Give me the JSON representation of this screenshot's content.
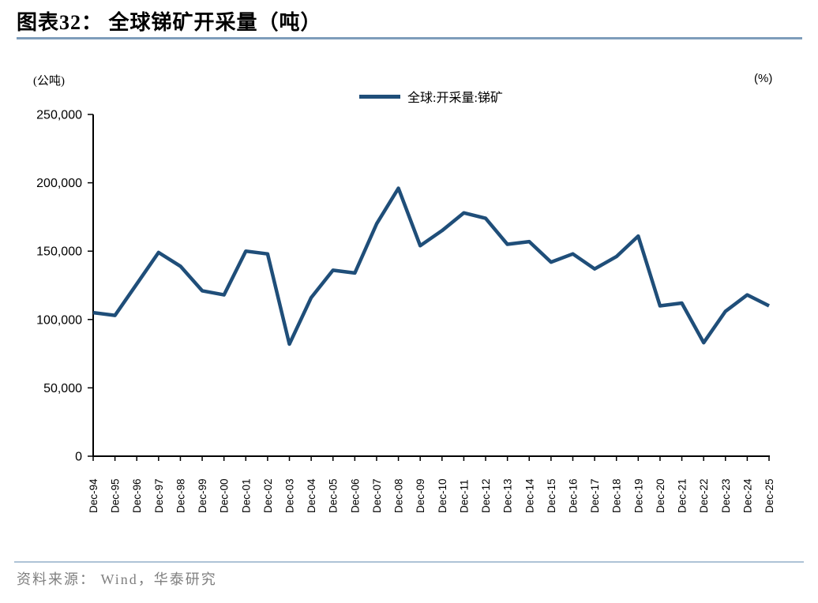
{
  "page": {
    "title": "图表32： 全球锑矿开采量（吨）"
  },
  "footer": {
    "source": "资料来源： Wind，华泰研究"
  },
  "chart": {
    "left_unit": "(公吨)",
    "right_unit": "(%)",
    "legend": "全球:开采量:锑矿",
    "line_color": "#1f4e79",
    "axis_color": "#000000",
    "title_rule_color": "#7e9dbb",
    "footer_rule_color": "#aec3d6"
  },
  "chart_data": {
    "type": "line",
    "title": "全球锑矿开采量（吨）",
    "xlabel": "",
    "ylabel": "(公吨)",
    "ylabel_right": "(%)",
    "legend_position": "top-center",
    "grid": false,
    "ylim": [
      0,
      250000
    ],
    "ytick_step": 50000,
    "ytick_labels": [
      "0",
      "50,000",
      "100,000",
      "150,000",
      "200,000",
      "250,000"
    ],
    "categories": [
      "Dec-94",
      "Dec-95",
      "Dec-96",
      "Dec-97",
      "Dec-98",
      "Dec-99",
      "Dec-00",
      "Dec-01",
      "Dec-02",
      "Dec-03",
      "Dec-04",
      "Dec-05",
      "Dec-06",
      "Dec-07",
      "Dec-08",
      "Dec-09",
      "Dec-10",
      "Dec-11",
      "Dec-12",
      "Dec-13",
      "Dec-14",
      "Dec-15",
      "Dec-16",
      "Dec-17",
      "Dec-18",
      "Dec-19",
      "Dec-20",
      "Dec-21",
      "Dec-22",
      "Dec-23",
      "Dec-24",
      "Dec-25"
    ],
    "series": [
      {
        "name": "全球:开采量:锑矿",
        "color": "#1f4e79",
        "values": [
          105000,
          103000,
          126000,
          149000,
          139000,
          121000,
          118000,
          150000,
          148000,
          82000,
          116000,
          136000,
          134000,
          170000,
          196000,
          154000,
          165000,
          178000,
          174000,
          155000,
          157000,
          142000,
          148000,
          137000,
          146000,
          161000,
          110000,
          112000,
          83000,
          106000,
          118000,
          110000
        ]
      }
    ]
  }
}
